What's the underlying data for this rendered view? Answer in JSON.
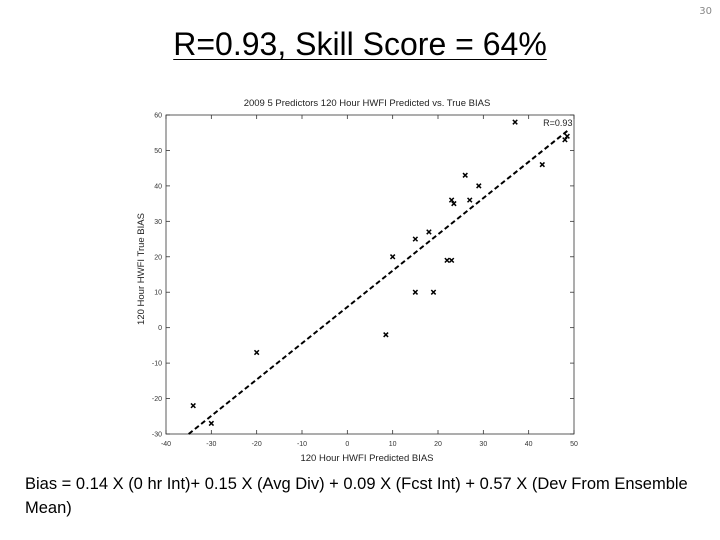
{
  "slide": {
    "number": "30",
    "title": "R=0.93, Skill Score = 64%",
    "equation": "Bias = 0.14 X (0 hr Int)+ 0.15 X (Avg Div) + 0.09 X (Fcst Int) + 0.57 X (Dev From Ensemble Mean)"
  },
  "chart_data": {
    "type": "scatter",
    "title": "2009 5 Predictors 120 Hour HWFI Predicted vs. True BIAS",
    "xlabel": "120 Hour HWFI Predicted BIAS",
    "ylabel": "120 Hour HWFI True BIAS",
    "xlim": [
      -40,
      50
    ],
    "ylim": [
      -30,
      60
    ],
    "xticks": [
      -40,
      -30,
      -20,
      -10,
      0,
      10,
      20,
      30,
      40,
      50
    ],
    "yticks": [
      -30,
      -20,
      -10,
      0,
      10,
      20,
      30,
      40,
      50,
      60
    ],
    "grid": false,
    "marker": "x",
    "marker_color": "#000000",
    "points": [
      {
        "x": -34,
        "y": -22
      },
      {
        "x": -30,
        "y": -27
      },
      {
        "x": -20,
        "y": -7
      },
      {
        "x": 8.5,
        "y": -2
      },
      {
        "x": 10,
        "y": 20
      },
      {
        "x": 15,
        "y": 25
      },
      {
        "x": 15,
        "y": 10
      },
      {
        "x": 18,
        "y": 27
      },
      {
        "x": 19,
        "y": 10
      },
      {
        "x": 22,
        "y": 19
      },
      {
        "x": 23,
        "y": 19
      },
      {
        "x": 23,
        "y": 36
      },
      {
        "x": 23.5,
        "y": 35
      },
      {
        "x": 26,
        "y": 43
      },
      {
        "x": 27,
        "y": 36
      },
      {
        "x": 29,
        "y": 40
      },
      {
        "x": 37,
        "y": 58
      },
      {
        "x": 43,
        "y": 46
      },
      {
        "x": 48,
        "y": 53
      },
      {
        "x": 48.5,
        "y": 54
      }
    ],
    "fit_line": {
      "x": [
        -35,
        49
      ],
      "y": [
        -30,
        56
      ],
      "style": "dashed",
      "label": "R=0.93"
    }
  }
}
